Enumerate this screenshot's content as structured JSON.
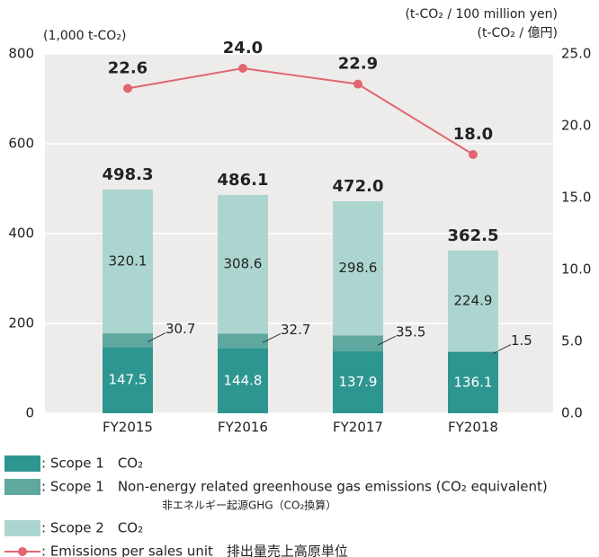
{
  "chart_data": {
    "type": "bar",
    "y_label": "(1,000 t-CO₂)",
    "y2_label": [
      "(t-CO₂ / 100 million yen)",
      "(t-CO₂ / 億円)"
    ],
    "categories": [
      "FY2015",
      "FY2016",
      "FY2017",
      "FY2018"
    ],
    "series": [
      {
        "name": ": Scope 1　CO₂",
        "color": "#2e9690",
        "values": [
          147.5,
          144.8,
          137.9,
          136.1
        ]
      },
      {
        "name": ": Scope 1　Non-energy related greenhouse gas emissions (CO₂ equivalent)",
        "note": "非エネルギー起源GHG（CO₂換算）",
        "color": "#5fa8a0",
        "values": [
          30.7,
          32.7,
          35.5,
          1.5
        ]
      },
      {
        "name": ": Scope 2　CO₂",
        "color": "#acd5d0",
        "values": [
          320.1,
          308.6,
          298.6,
          224.9
        ]
      },
      {
        "name": ": Emissions per sales unit　排出量売上高原単位",
        "color": "#e06670",
        "type": "line",
        "axis": "y2",
        "values": [
          22.6,
          24.0,
          22.9,
          18.0
        ],
        "value_labels": [
          "22.6",
          "24.0",
          "22.9",
          "18.0"
        ]
      }
    ],
    "totals": {
      "values": [
        498.3,
        486.1,
        472.0,
        362.5
      ],
      "value_labels": [
        "498.3",
        "486.1",
        "472.0",
        "362.5"
      ]
    },
    "ylim": [
      0,
      800
    ],
    "yticks": [
      0,
      200,
      400,
      600,
      800
    ],
    "y2lim": [
      0,
      25
    ],
    "y2ticks": [
      {
        "value": 0,
        "label": "0.0"
      },
      {
        "value": 5,
        "label": "5.0"
      },
      {
        "value": 10,
        "label": "10.0"
      },
      {
        "value": 15,
        "label": "15.0"
      },
      {
        "value": 20,
        "label": "20.0"
      },
      {
        "value": 25,
        "label": "25.0"
      }
    ],
    "grid": true
  }
}
